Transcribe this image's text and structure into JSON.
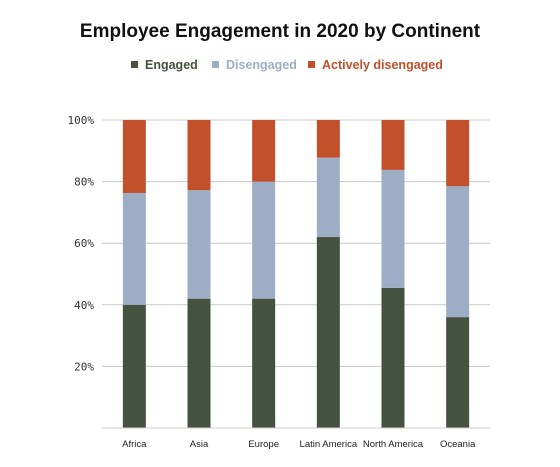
{
  "chart_data": {
    "type": "bar",
    "stacked": true,
    "title": "Employee Engagement in 2020 by Continent",
    "categories": [
      "Africa",
      "Asia",
      "Europe",
      "Latin America",
      "North America",
      "Oceania"
    ],
    "series": [
      {
        "name": "Engaged",
        "color": "#44523f",
        "values": [
          40,
          42,
          42,
          62,
          45.5,
          36
        ]
      },
      {
        "name": "Disengaged",
        "color": "#9eadc6",
        "values": [
          36.3,
          35.2,
          38,
          25.8,
          38.3,
          42.5
        ]
      },
      {
        "name": "Actively disengaged",
        "color": "#c1502b",
        "values": [
          23.7,
          22.8,
          20,
          12.2,
          16.2,
          21.5
        ]
      }
    ],
    "ylim": [
      0,
      100
    ],
    "yticks": [
      20,
      40,
      60,
      80,
      100
    ],
    "ytick_labels": [
      "20%",
      "40%",
      "60%",
      "80%",
      "100%"
    ],
    "grid": true,
    "legend_position": "top-center"
  }
}
